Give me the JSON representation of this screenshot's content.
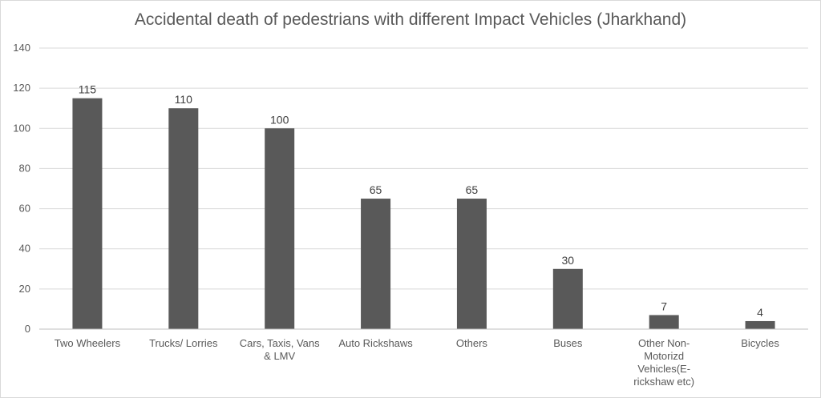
{
  "chart_data": {
    "type": "bar",
    "title": "Accidental death of pedestrians with different Impact Vehicles (Jharkhand)",
    "xlabel": "",
    "ylabel": "",
    "categories": [
      "Two Wheelers",
      "Trucks/ Lorries",
      "Cars, Taxis, Vans & LMV",
      "Auto Rickshaws",
      "Others",
      "Buses",
      "Other Non-Motorizd Vehicles(E-rickshaw etc)",
      "Bicycles"
    ],
    "category_lines": [
      [
        "Two Wheelers"
      ],
      [
        "Trucks/ Lorries"
      ],
      [
        "Cars, Taxis, Vans",
        "& LMV"
      ],
      [
        "Auto Rickshaws"
      ],
      [
        "Others"
      ],
      [
        "Buses"
      ],
      [
        "Other Non-",
        "Motorizd",
        "Vehicles(E-",
        "rickshaw etc)"
      ],
      [
        "Bicycles"
      ]
    ],
    "values": [
      115,
      110,
      100,
      65,
      65,
      30,
      7,
      4
    ],
    "ylim": [
      0,
      140
    ],
    "yticks": [
      0,
      20,
      40,
      60,
      80,
      100,
      120,
      140
    ],
    "grid": true,
    "legend": "none",
    "colors": {
      "bar": "#595959",
      "grid": "#d9d9d9",
      "axis": "#bfbfbf"
    }
  }
}
